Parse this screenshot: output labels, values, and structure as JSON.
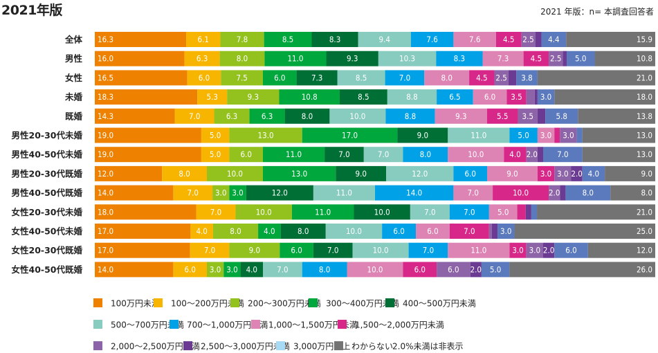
{
  "title": "2021年版",
  "note": "2021 年版：n= 本調査回答者",
  "chart_data": {
    "type": "bar",
    "orientation": "horizontal-stacked-100",
    "title": "2021年版",
    "subtitle": "2021 年版：n= 本調査回答者",
    "footnote": "2.0%未満は非表示",
    "xlim": [
      0,
      100
    ],
    "categories": [
      "全体",
      "男性",
      "女性",
      "未婚",
      "既婚",
      "男性20-30代未婚",
      "男性40-50代未婚",
      "男性20-30代既婚",
      "男性40-50代既婚",
      "女性20-30代未婚",
      "女性40-50代未婚",
      "女性20-30代既婚",
      "女性40-50代既婚"
    ],
    "series": [
      {
        "name": "100万円未満",
        "color": "#ee8200",
        "legend_color": "#ee8200",
        "values": [
          16.3,
          16.0,
          16.5,
          18.3,
          14.3,
          19.0,
          19.0,
          12.0,
          14.0,
          18.0,
          17.0,
          17.0,
          14.0
        ]
      },
      {
        "name": "100～200万円未満",
        "color": "#f7b500",
        "legend_color": "#f7b500",
        "values": [
          6.1,
          6.3,
          6.0,
          5.3,
          7.0,
          5.0,
          5.0,
          8.0,
          7.0,
          7.0,
          4.0,
          7.0,
          6.0
        ]
      },
      {
        "name": "200～300万円未満",
        "color": "#93c21f",
        "legend_color": "#93c21f",
        "values": [
          7.8,
          8.0,
          7.5,
          9.3,
          6.3,
          13.0,
          6.0,
          10.0,
          3.0,
          10.0,
          8.0,
          9.0,
          3.0
        ]
      },
      {
        "name": "300～400万円未満",
        "color": "#00a73c",
        "legend_color": "#00a73c",
        "values": [
          8.5,
          11.0,
          6.0,
          10.8,
          6.3,
          17.0,
          11.0,
          13.0,
          3.0,
          11.0,
          4.0,
          6.0,
          3.0
        ]
      },
      {
        "name": "400～500万円未満",
        "color": "#006f35",
        "legend_color": "#006f35",
        "values": [
          8.3,
          9.3,
          7.3,
          8.5,
          8.0,
          9.0,
          7.0,
          9.0,
          12.0,
          10.0,
          8.0,
          7.0,
          4.0
        ]
      },
      {
        "name": "500～700万円未満",
        "color": "#88cbbf",
        "legend_color": "#88cbbf",
        "values": [
          9.4,
          10.3,
          8.5,
          8.8,
          10.0,
          11.0,
          7.0,
          12.0,
          11.0,
          7.0,
          10.0,
          10.0,
          7.0
        ]
      },
      {
        "name": "700～1,000万円未満",
        "color": "#00a1e6",
        "legend_color": "#00a1e6",
        "values": [
          7.6,
          8.3,
          7.0,
          6.5,
          8.8,
          5.0,
          8.0,
          6.0,
          14.0,
          7.0,
          6.0,
          7.0,
          8.0
        ]
      },
      {
        "name": "1,000～1,500万円未満",
        "color": "#de84b4",
        "legend_color": "#de84b4",
        "values": [
          7.6,
          7.3,
          8.0,
          6.0,
          9.3,
          3.0,
          10.0,
          9.0,
          7.0,
          5.0,
          6.0,
          11.0,
          10.0
        ]
      },
      {
        "name": "1,500～2,000万円未満",
        "color": "#d7288a",
        "legend_color": "#d7288a",
        "values": [
          4.5,
          4.5,
          4.5,
          3.5,
          5.5,
          1.0,
          4.0,
          3.0,
          10.0,
          1.5,
          7.0,
          3.0,
          6.0
        ]
      },
      {
        "name": "2,000～2,500万円未満",
        "color": "#8e64a8",
        "legend_color": "#8e64a8",
        "values": [
          2.5,
          2.5,
          2.5,
          1.5,
          3.5,
          3.0,
          2.0,
          3.0,
          2.0,
          0.0,
          0.5,
          3.0,
          6.0
        ]
      },
      {
        "name": "2,500～3,000万円未満",
        "color": "#6b3a93",
        "legend_color": "#6b3a93",
        "values": [
          1.1,
          0.7,
          1.4,
          0.5,
          1.4,
          0.0,
          1.0,
          2.0,
          1.0,
          1.0,
          1.0,
          2.0,
          2.0
        ]
      },
      {
        "name": "3,000万円以上",
        "color": "#5b79bd",
        "legend_color": "#a6daf5",
        "values": [
          4.4,
          5.0,
          3.8,
          3.0,
          5.8,
          1.0,
          7.0,
          4.0,
          8.0,
          1.0,
          3.0,
          6.0,
          5.0
        ]
      },
      {
        "name": "わからない",
        "color": "#737373",
        "legend_color": "#737373",
        "values": [
          15.9,
          10.8,
          21.0,
          18.0,
          13.8,
          13.0,
          13.0,
          9.0,
          8.0,
          21.0,
          25.0,
          12.0,
          26.0
        ]
      }
    ]
  }
}
